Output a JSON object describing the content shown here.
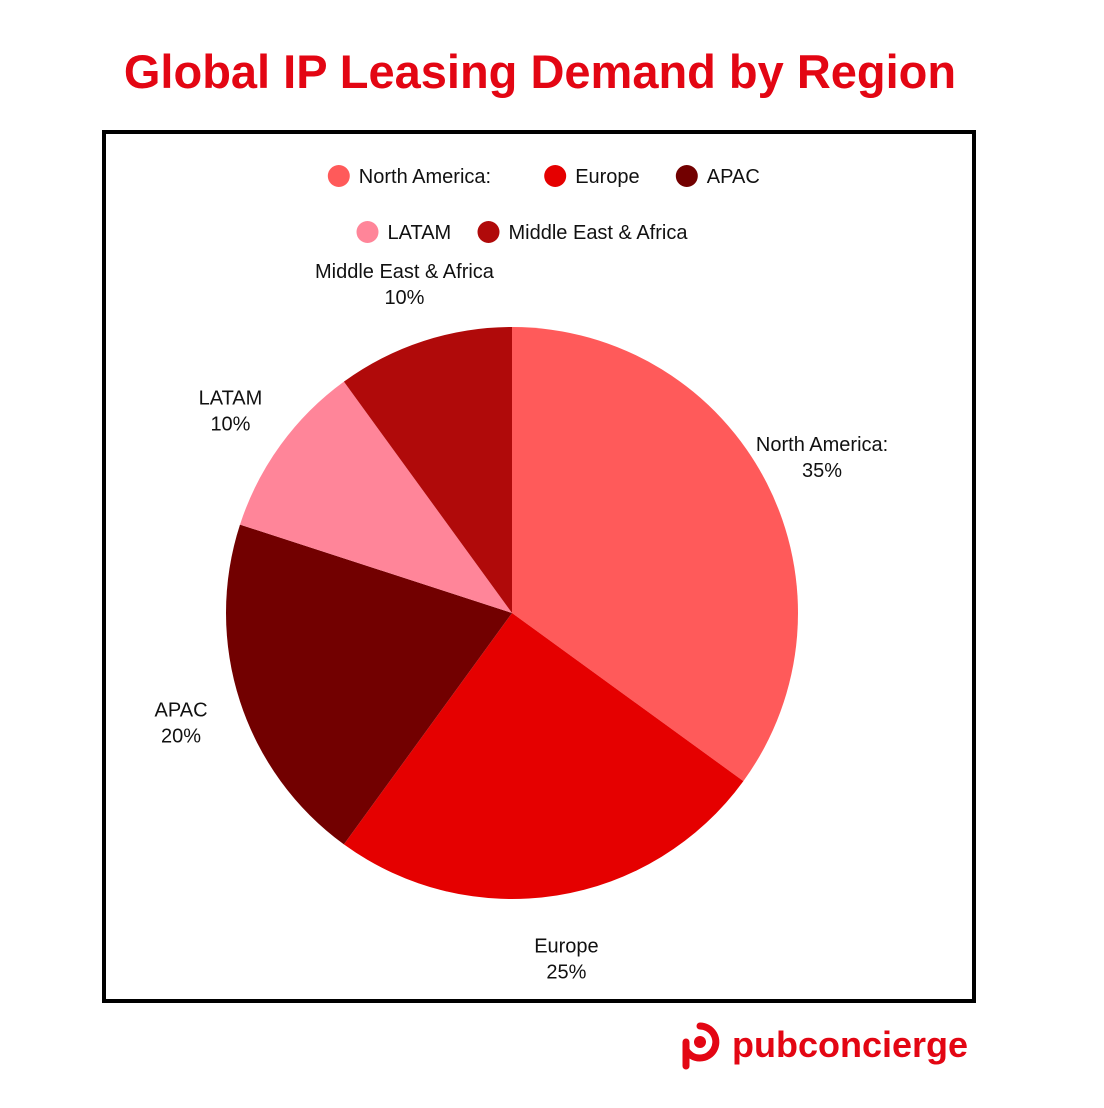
{
  "title": "Global IP Leasing Demand by Region",
  "brand": {
    "name": "pubconcierge",
    "color": "#e30613"
  },
  "chart_data": {
    "type": "pie",
    "title": "Global IP Leasing Demand by Region",
    "legend_position": "top",
    "slices": [
      {
        "label": "North America:",
        "value": 35,
        "value_label": "35%",
        "color": "#ff5a5a"
      },
      {
        "label": "Europe",
        "value": 25,
        "value_label": "25%",
        "color": "#e50000"
      },
      {
        "label": "APAC",
        "value": 20,
        "value_label": "20%",
        "color": "#720000"
      },
      {
        "label": "LATAM",
        "value": 10,
        "value_label": "10%",
        "color": "#ff8599"
      },
      {
        "label": "Middle East & Africa",
        "value": 10,
        "value_label": "10%",
        "color": "#b00a0a"
      }
    ]
  }
}
